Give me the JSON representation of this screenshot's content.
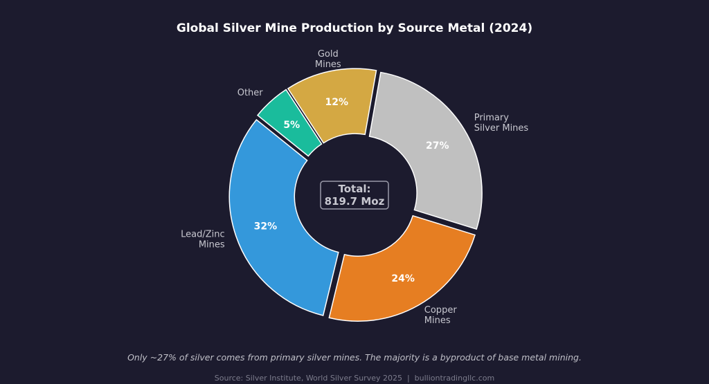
{
  "chart_data": {
    "type": "pie",
    "variant": "donut",
    "title": "Global Silver Mine Production by Source Metal (2024)",
    "slices": [
      {
        "label": "Primary\nSilver Mines",
        "value": 27,
        "pct_label": "27%",
        "color": "#c0c0c0"
      },
      {
        "label": "Copper\nMines",
        "value": 24,
        "pct_label": "24%",
        "color": "#e67e22"
      },
      {
        "label": "Lead/Zinc\nMines",
        "value": 32,
        "pct_label": "32%",
        "color": "#3498db"
      },
      {
        "label": "Other",
        "value": 5,
        "pct_label": "5%",
        "color": "#1abc9c"
      },
      {
        "label": "Gold\nMines",
        "value": 12,
        "pct_label": "12%",
        "color": "#d4a843"
      }
    ],
    "center_text": [
      "Total:",
      "819.7 Moz"
    ],
    "direction": "clockwise",
    "annotation": "Only ~27% of silver comes from primary silver mines. The majority is a byproduct of base metal mining.",
    "source": "Source: Silver Institute, World Silver Survey 2025  |  bulliontradingllc.com"
  },
  "background": "#1c1b2e"
}
